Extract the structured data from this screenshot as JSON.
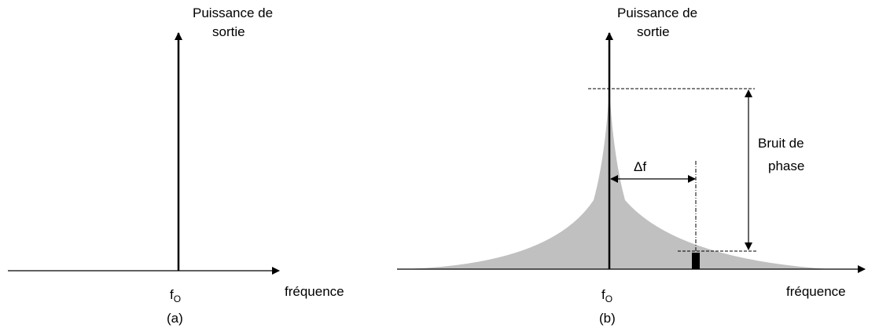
{
  "panels": [
    {
      "y_label": [
        "Puissance de",
        "sortie"
      ],
      "x_label": "fréquence",
      "center_label": {
        "base": "f",
        "sub": "O"
      },
      "caption": "(a)"
    },
    {
      "y_label": [
        "Puissance de",
        "sortie"
      ],
      "x_label": "fréquence",
      "center_label": {
        "base": "f",
        "sub": "O"
      },
      "caption": "(b)",
      "offset_label": "Δf",
      "noise_label": [
        "Bruit de",
        "phase"
      ]
    }
  ]
}
